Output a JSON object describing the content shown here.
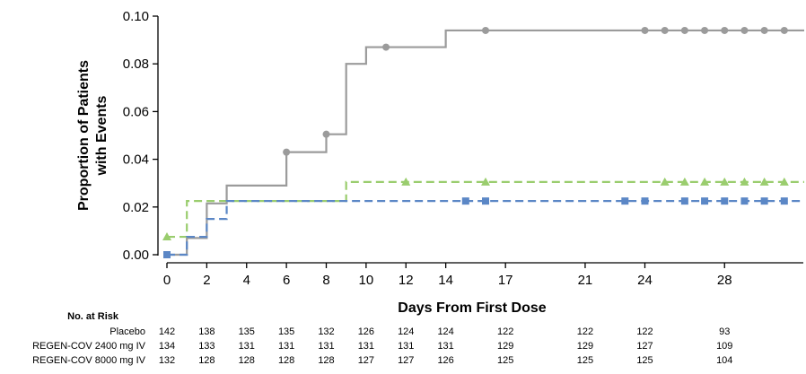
{
  "chart_data": {
    "type": "line",
    "subtype": "kaplan-meier-cumulative-incidence",
    "title": "",
    "xlabel": "Days From First Dose",
    "ylabel_lines": [
      "Proportion of Patients",
      "with Events"
    ],
    "xlim": [
      0,
      32
    ],
    "ylim": [
      0,
      0.1
    ],
    "x_ticks": [
      0,
      2,
      4,
      6,
      8,
      10,
      12,
      14,
      17,
      21,
      24,
      28
    ],
    "y_ticks": [
      "0.00",
      "0.02",
      "0.04",
      "0.06",
      "0.08",
      "0.10"
    ],
    "grid": false,
    "series": [
      {
        "id": "placebo",
        "color": "#9b9b9b",
        "dash": "solid",
        "marker": "circle",
        "steps": [
          [
            0,
            0
          ],
          [
            1,
            0.007
          ],
          [
            2,
            0.0215
          ],
          [
            3,
            0.029
          ],
          [
            6,
            0.043
          ],
          [
            8,
            0.0505
          ],
          [
            9,
            0.08
          ],
          [
            10,
            0.087
          ],
          [
            14,
            0.094
          ],
          [
            32,
            0.094
          ]
        ],
        "censored": [
          [
            0,
            0
          ],
          [
            6,
            0.043
          ],
          [
            8,
            0.0505
          ],
          [
            11,
            0.087
          ],
          [
            16,
            0.094
          ],
          [
            24,
            0.094
          ],
          [
            25,
            0.094
          ],
          [
            26,
            0.094
          ],
          [
            27,
            0.094
          ],
          [
            28,
            0.094
          ],
          [
            29,
            0.094
          ],
          [
            30,
            0.094
          ],
          [
            31,
            0.094
          ]
        ]
      },
      {
        "id": "regen2400",
        "color": "#9acd6e",
        "dash": "dashed",
        "marker": "triangle",
        "steps": [
          [
            0,
            0.0075
          ],
          [
            1,
            0.0225
          ],
          [
            9,
            0.0305
          ],
          [
            32,
            0.0305
          ]
        ],
        "censored": [
          [
            0,
            0.0075
          ],
          [
            12,
            0.0305
          ],
          [
            16,
            0.0305
          ],
          [
            25,
            0.0305
          ],
          [
            26,
            0.0305
          ],
          [
            27,
            0.0305
          ],
          [
            28,
            0.0305
          ],
          [
            29,
            0.0305
          ],
          [
            30,
            0.0305
          ],
          [
            31,
            0.0305
          ]
        ]
      },
      {
        "id": "regen8000",
        "color": "#5b87c6",
        "dash": "dashed",
        "marker": "square",
        "steps": [
          [
            0,
            0
          ],
          [
            1,
            0.0075
          ],
          [
            2,
            0.015
          ],
          [
            3,
            0.0225
          ],
          [
            32,
            0.0225
          ]
        ],
        "censored": [
          [
            0,
            0
          ],
          [
            15,
            0.0225
          ],
          [
            16,
            0.0225
          ],
          [
            23,
            0.0225
          ],
          [
            24,
            0.0225
          ],
          [
            26,
            0.0225
          ],
          [
            27,
            0.0225
          ],
          [
            28,
            0.0225
          ],
          [
            29,
            0.0225
          ],
          [
            30,
            0.0225
          ],
          [
            31,
            0.0225
          ]
        ]
      }
    ],
    "risk_table": {
      "title": "No. at Risk",
      "x": [
        0,
        2,
        4,
        6,
        8,
        10,
        12,
        14,
        17,
        21,
        24,
        28
      ],
      "rows": [
        {
          "label": "Placebo",
          "values": [
            "142",
            "138",
            "135",
            "135",
            "132",
            "126",
            "124",
            "124",
            "122",
            "122",
            "122",
            "93"
          ]
        },
        {
          "label": "REGEN-COV 2400 mg IV",
          "values": [
            "134",
            "133",
            "131",
            "131",
            "131",
            "131",
            "131",
            "131",
            "129",
            "129",
            "127",
            "109"
          ]
        },
        {
          "label": "REGEN-COV 8000 mg IV",
          "values": [
            "132",
            "128",
            "128",
            "128",
            "128",
            "127",
            "127",
            "126",
            "125",
            "125",
            "125",
            "104"
          ]
        }
      ]
    }
  }
}
